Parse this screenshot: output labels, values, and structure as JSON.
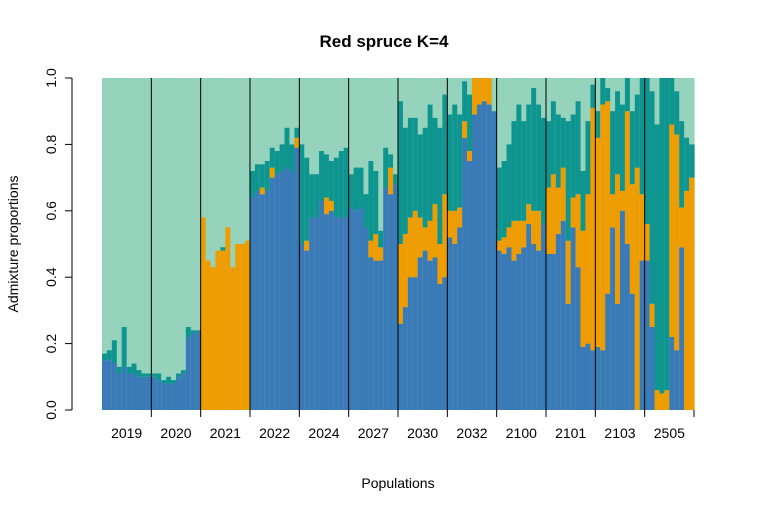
{
  "chart_data": {
    "type": "bar",
    "stacked": true,
    "title": "Red spruce K=4",
    "xlabel": "Populations",
    "ylabel": "Admixture proportions",
    "ylim": [
      0,
      1
    ],
    "yticks": [
      "0.0",
      "0.2",
      "0.4",
      "0.6",
      "0.8",
      "1.0"
    ],
    "colors": {
      "blue": "#3a7ab7",
      "teal": "#0e958f",
      "orange": "#ef9c00",
      "mint": "#96d3bc"
    },
    "populations": [
      {
        "label": "2019",
        "individuals": [
          {
            "blue": 0.15,
            "teal": 0.02,
            "orange": 0.0
          },
          {
            "blue": 0.15,
            "teal": 0.03,
            "orange": 0.0
          },
          {
            "blue": 0.14,
            "teal": 0.07,
            "orange": 0.0
          },
          {
            "blue": 0.11,
            "teal": 0.02,
            "orange": 0.0
          },
          {
            "blue": 0.13,
            "teal": 0.12,
            "orange": 0.0
          },
          {
            "blue": 0.11,
            "teal": 0.02,
            "orange": 0.0
          },
          {
            "blue": 0.11,
            "teal": 0.03,
            "orange": 0.0
          },
          {
            "blue": 0.1,
            "teal": 0.02,
            "orange": 0.0
          },
          {
            "blue": 0.1,
            "teal": 0.01,
            "orange": 0.0
          },
          {
            "blue": 0.1,
            "teal": 0.01,
            "orange": 0.0
          }
        ]
      },
      {
        "label": "2020",
        "individuals": [
          {
            "blue": 0.1,
            "teal": 0.01,
            "orange": 0.0
          },
          {
            "blue": 0.09,
            "teal": 0.02,
            "orange": 0.0
          },
          {
            "blue": 0.08,
            "teal": 0.01,
            "orange": 0.0
          },
          {
            "blue": 0.08,
            "teal": 0.02,
            "orange": 0.0
          },
          {
            "blue": 0.08,
            "teal": 0.01,
            "orange": 0.0
          },
          {
            "blue": 0.1,
            "teal": 0.01,
            "orange": 0.0
          },
          {
            "blue": 0.11,
            "teal": 0.01,
            "orange": 0.0
          },
          {
            "blue": 0.22,
            "teal": 0.03,
            "orange": 0.0
          },
          {
            "blue": 0.23,
            "teal": 0.01,
            "orange": 0.0
          },
          {
            "blue": 0.24,
            "teal": 0.0,
            "orange": 0.0
          }
        ]
      },
      {
        "label": "2021",
        "individuals": [
          {
            "blue": 0.0,
            "teal": 0.0,
            "orange": 0.58
          },
          {
            "blue": 0.0,
            "teal": 0.0,
            "orange": 0.45
          },
          {
            "blue": 0.0,
            "teal": 0.0,
            "orange": 0.43
          },
          {
            "blue": 0.0,
            "teal": 0.0,
            "orange": 0.48
          },
          {
            "blue": 0.0,
            "teal": 0.01,
            "orange": 0.48
          },
          {
            "blue": 0.0,
            "teal": 0.0,
            "orange": 0.55
          },
          {
            "blue": 0.0,
            "teal": 0.0,
            "orange": 0.43
          },
          {
            "blue": 0.0,
            "teal": 0.0,
            "orange": 0.5
          },
          {
            "blue": 0.0,
            "teal": 0.0,
            "orange": 0.5
          },
          {
            "blue": 0.0,
            "teal": 0.0,
            "orange": 0.51
          }
        ]
      },
      {
        "label": "2022",
        "individuals": [
          {
            "blue": 0.64,
            "teal": 0.08,
            "orange": 0.0
          },
          {
            "blue": 0.66,
            "teal": 0.08,
            "orange": 0.0
          },
          {
            "blue": 0.65,
            "teal": 0.07,
            "orange": 0.02
          },
          {
            "blue": 0.66,
            "teal": 0.09,
            "orange": 0.0
          },
          {
            "blue": 0.7,
            "teal": 0.06,
            "orange": 0.03
          },
          {
            "blue": 0.71,
            "teal": 0.07,
            "orange": 0.0
          },
          {
            "blue": 0.72,
            "teal": 0.08,
            "orange": 0.0
          },
          {
            "blue": 0.73,
            "teal": 0.12,
            "orange": 0.0
          },
          {
            "blue": 0.72,
            "teal": 0.08,
            "orange": 0.0
          },
          {
            "blue": 0.79,
            "teal": 0.03,
            "orange": 0.03
          }
        ]
      },
      {
        "label": "2024",
        "individuals": [
          {
            "blue": 0.5,
            "teal": 0.3,
            "orange": 0.0
          },
          {
            "blue": 0.48,
            "teal": 0.25,
            "orange": 0.03
          },
          {
            "blue": 0.58,
            "teal": 0.13,
            "orange": 0.0
          },
          {
            "blue": 0.58,
            "teal": 0.13,
            "orange": 0.0
          },
          {
            "blue": 0.63,
            "teal": 0.15,
            "orange": 0.0
          },
          {
            "blue": 0.59,
            "teal": 0.13,
            "orange": 0.05
          },
          {
            "blue": 0.6,
            "teal": 0.12,
            "orange": 0.03
          },
          {
            "blue": 0.58,
            "teal": 0.18,
            "orange": 0.0
          },
          {
            "blue": 0.58,
            "teal": 0.2,
            "orange": 0.0
          },
          {
            "blue": 0.58,
            "teal": 0.21,
            "orange": 0.0
          }
        ]
      },
      {
        "label": "2027",
        "individuals": [
          {
            "blue": 0.61,
            "teal": 0.1,
            "orange": 0.0
          },
          {
            "blue": 0.6,
            "teal": 0.13,
            "orange": 0.0
          },
          {
            "blue": 0.61,
            "teal": 0.12,
            "orange": 0.0
          },
          {
            "blue": 0.55,
            "teal": 0.1,
            "orange": 0.0
          },
          {
            "blue": 0.46,
            "teal": 0.24,
            "orange": 0.05
          },
          {
            "blue": 0.45,
            "teal": 0.19,
            "orange": 0.08
          },
          {
            "blue": 0.45,
            "teal": 0.05,
            "orange": 0.04
          },
          {
            "blue": 0.67,
            "teal": 0.12,
            "orange": 0.0
          },
          {
            "blue": 0.65,
            "teal": 0.04,
            "orange": 0.08
          },
          {
            "blue": 0.68,
            "teal": 0.03,
            "orange": 0.0
          }
        ]
      },
      {
        "label": "2030",
        "individuals": [
          {
            "blue": 0.26,
            "teal": 0.43,
            "orange": 0.24
          },
          {
            "blue": 0.31,
            "teal": 0.32,
            "orange": 0.22
          },
          {
            "blue": 0.4,
            "teal": 0.3,
            "orange": 0.18
          },
          {
            "blue": 0.4,
            "teal": 0.28,
            "orange": 0.2
          },
          {
            "blue": 0.46,
            "teal": 0.25,
            "orange": 0.12
          },
          {
            "blue": 0.48,
            "teal": 0.3,
            "orange": 0.07
          },
          {
            "blue": 0.45,
            "teal": 0.35,
            "orange": 0.12
          },
          {
            "blue": 0.46,
            "teal": 0.26,
            "orange": 0.16
          },
          {
            "blue": 0.38,
            "teal": 0.35,
            "orange": 0.12
          },
          {
            "blue": 0.4,
            "teal": 0.3,
            "orange": 0.25
          }
        ]
      },
      {
        "label": "2032",
        "individuals": [
          {
            "blue": 0.52,
            "teal": 0.29,
            "orange": 0.08
          },
          {
            "blue": 0.5,
            "teal": 0.32,
            "orange": 0.1
          },
          {
            "blue": 0.55,
            "teal": 0.28,
            "orange": 0.06
          },
          {
            "blue": 0.82,
            "teal": 0.12,
            "orange": 0.05
          },
          {
            "blue": 0.75,
            "teal": 0.17,
            "orange": 0.03
          },
          {
            "blue": 0.89,
            "teal": 0.0,
            "orange": 0.11
          },
          {
            "blue": 0.92,
            "teal": 0.0,
            "orange": 0.08
          },
          {
            "blue": 0.93,
            "teal": 0.0,
            "orange": 0.07
          },
          {
            "blue": 0.92,
            "teal": 0.0,
            "orange": 0.08
          },
          {
            "blue": 0.9,
            "teal": 0.0,
            "orange": 0.0
          }
        ]
      },
      {
        "label": "2100",
        "individuals": [
          {
            "blue": 0.48,
            "teal": 0.22,
            "orange": 0.03
          },
          {
            "blue": 0.47,
            "teal": 0.23,
            "orange": 0.05
          },
          {
            "blue": 0.49,
            "teal": 0.25,
            "orange": 0.06
          },
          {
            "blue": 0.45,
            "teal": 0.3,
            "orange": 0.12
          },
          {
            "blue": 0.47,
            "teal": 0.35,
            "orange": 0.1
          },
          {
            "blue": 0.49,
            "teal": 0.3,
            "orange": 0.08
          },
          {
            "blue": 0.56,
            "teal": 0.3,
            "orange": 0.06
          },
          {
            "blue": 0.5,
            "teal": 0.37,
            "orange": 0.1
          },
          {
            "blue": 0.48,
            "teal": 0.32,
            "orange": 0.12
          },
          {
            "blue": 0.56,
            "teal": 0.32,
            "orange": 0.0
          }
        ]
      },
      {
        "label": "2101",
        "individuals": [
          {
            "blue": 0.47,
            "teal": 0.2,
            "orange": 0.2
          },
          {
            "blue": 0.47,
            "teal": 0.22,
            "orange": 0.24
          },
          {
            "blue": 0.53,
            "teal": 0.22,
            "orange": 0.14
          },
          {
            "blue": 0.57,
            "teal": 0.15,
            "orange": 0.16
          },
          {
            "blue": 0.32,
            "teal": 0.36,
            "orange": 0.19
          },
          {
            "blue": 0.55,
            "teal": 0.25,
            "orange": 0.09
          },
          {
            "blue": 0.43,
            "teal": 0.28,
            "orange": 0.22
          },
          {
            "blue": 0.19,
            "teal": 0.18,
            "orange": 0.35
          },
          {
            "blue": 0.2,
            "teal": 0.22,
            "orange": 0.45
          },
          {
            "blue": 0.18,
            "teal": 0.07,
            "orange": 0.73
          }
        ]
      },
      {
        "label": "2103",
        "individuals": [
          {
            "blue": 0.19,
            "teal": 0.08,
            "orange": 0.63
          },
          {
            "blue": 0.18,
            "teal": 0.08,
            "orange": 0.74
          },
          {
            "blue": 0.35,
            "teal": 0.04,
            "orange": 0.58
          },
          {
            "blue": 0.55,
            "teal": 0.25,
            "orange": 0.1
          },
          {
            "blue": 0.32,
            "teal": 0.25,
            "orange": 0.39
          },
          {
            "blue": 0.6,
            "teal": 0.26,
            "orange": 0.06
          },
          {
            "blue": 0.5,
            "teal": 0.1,
            "orange": 0.4
          },
          {
            "blue": 0.35,
            "teal": 0.22,
            "orange": 0.33
          },
          {
            "blue": 0.0,
            "teal": 0.22,
            "orange": 0.73
          },
          {
            "blue": 0.45,
            "teal": 0.35,
            "orange": 0.2
          }
        ]
      },
      {
        "label": "2505",
        "individuals": [
          {
            "blue": 0.45,
            "teal": 0.44,
            "orange": 0.11
          },
          {
            "blue": 0.25,
            "teal": 0.64,
            "orange": 0.07
          },
          {
            "blue": 0.0,
            "teal": 0.8,
            "orange": 0.06
          },
          {
            "blue": 0.0,
            "teal": 0.95,
            "orange": 0.05
          },
          {
            "blue": 0.0,
            "teal": 0.94,
            "orange": 0.06
          },
          {
            "blue": 0.22,
            "teal": 0.14,
            "orange": 0.64
          },
          {
            "blue": 0.18,
            "teal": 0.13,
            "orange": 0.65
          },
          {
            "blue": 0.49,
            "teal": 0.26,
            "orange": 0.12
          },
          {
            "blue": 0.0,
            "teal": 0.16,
            "orange": 0.66
          },
          {
            "blue": 0.0,
            "teal": 0.1,
            "orange": 0.7
          }
        ]
      }
    ]
  }
}
